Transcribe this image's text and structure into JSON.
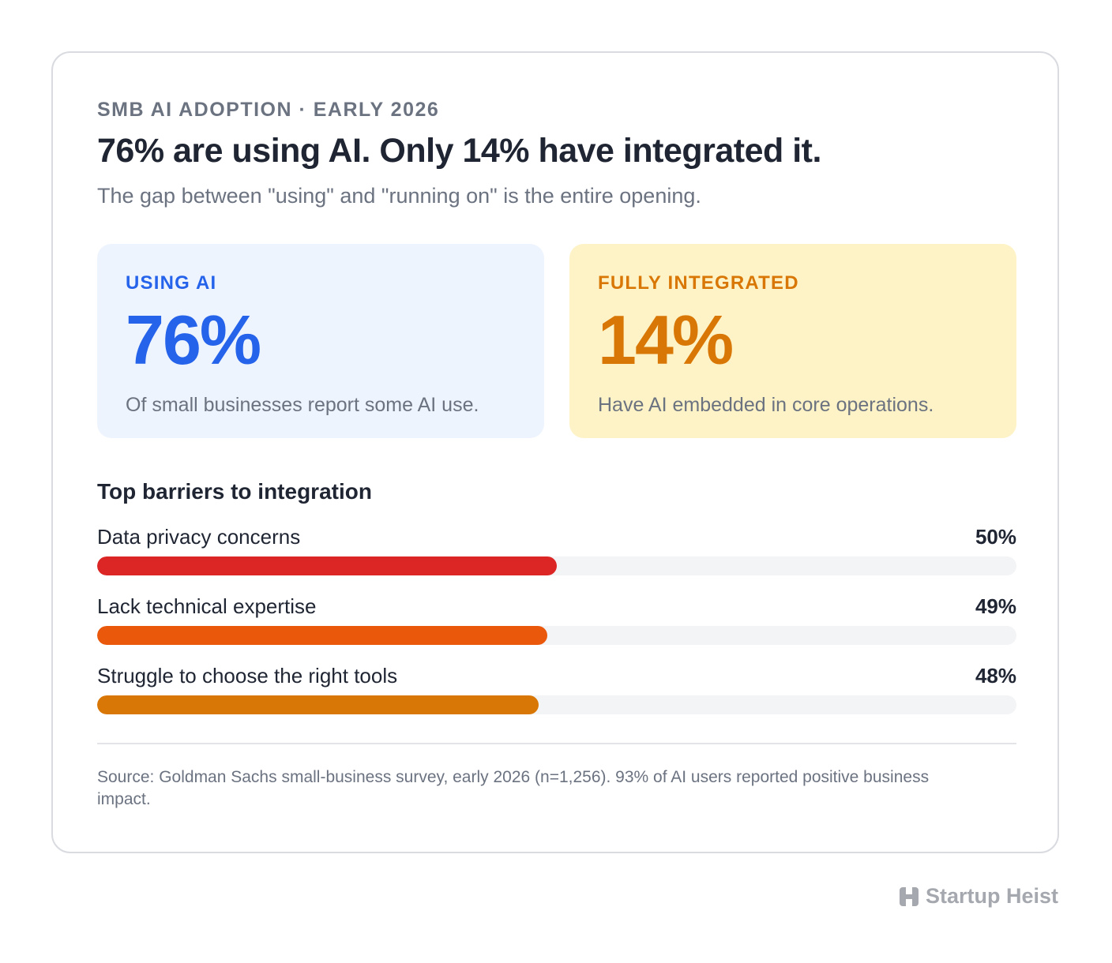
{
  "header": {
    "eyebrow": "SMB AI ADOPTION · EARLY 2026",
    "title": "76% are using AI. Only 14% have integrated it.",
    "subtitle": "The gap between \"using\" and \"running on\" is the entire opening."
  },
  "stats": {
    "using": {
      "label": "USING AI",
      "value": "76%",
      "description": "Of small businesses report some AI use.",
      "color": "#2563eb",
      "background": "#eef4fe"
    },
    "integrated": {
      "label": "FULLY INTEGRATED",
      "value": "14%",
      "description": "Have AI embedded in core operations.",
      "color": "#d97706",
      "background": "#fef3c6"
    }
  },
  "chart_data": {
    "type": "bar",
    "orientation": "horizontal",
    "title": "Top barriers to integration",
    "categories": [
      "Data privacy concerns",
      "Lack technical expertise",
      "Struggle to choose the right tools"
    ],
    "values": [
      50,
      49,
      48
    ],
    "value_labels": [
      "50%",
      "49%",
      "48%"
    ],
    "colors": [
      "#dc2626",
      "#ea580c",
      "#d97706"
    ],
    "xlim": [
      0,
      100
    ],
    "grid": false
  },
  "footer": {
    "source": "Source: Goldman Sachs small-business survey, early 2026 (n=1,256). 93% of AI users reported positive business impact."
  },
  "brand": {
    "name": "Startup Heist",
    "icon": "building-logo-icon"
  }
}
